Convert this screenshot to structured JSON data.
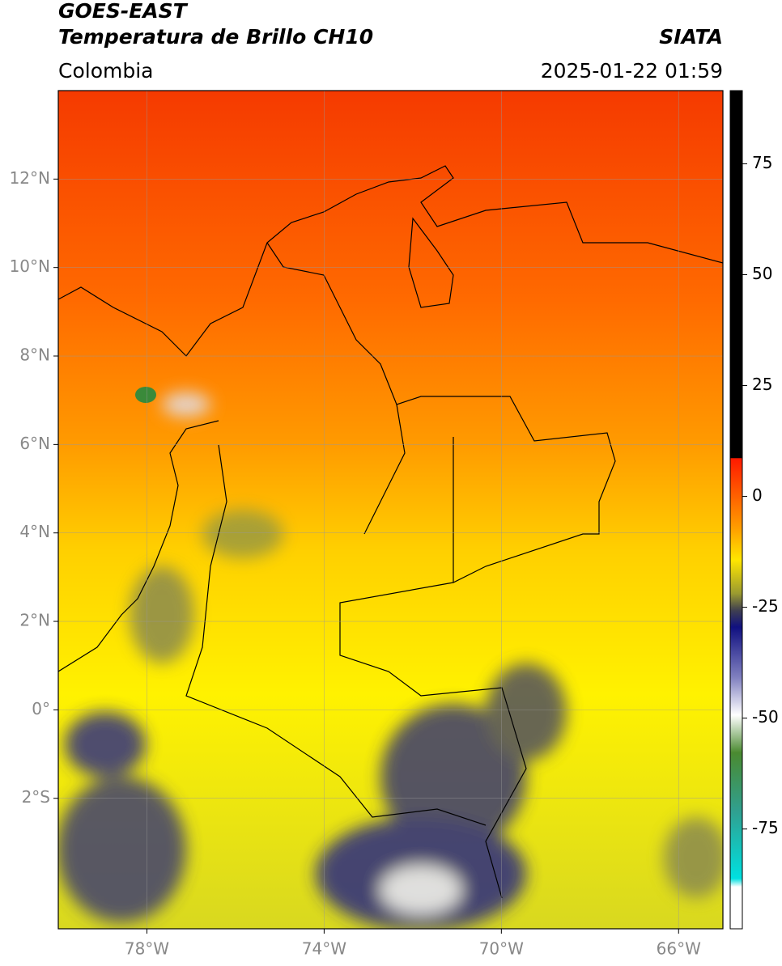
{
  "header": {
    "title": "GOES-EAST",
    "subtitle": "Temperatura de Brillo CH10",
    "region": "Colombia",
    "source": "SIATA",
    "timestamp": "2025-01-22 01:59"
  },
  "map": {
    "xlim": [
      -80,
      -65
    ],
    "ylim": [
      -4.95,
      14
    ],
    "xticks": [
      {
        "value": -78,
        "label": "78°W"
      },
      {
        "value": -74,
        "label": "74°W"
      },
      {
        "value": -70,
        "label": "70°W"
      },
      {
        "value": -66,
        "label": "66°W"
      }
    ],
    "yticks": [
      {
        "value": 12,
        "label": "12°N"
      },
      {
        "value": 10,
        "label": "10°N"
      },
      {
        "value": 8,
        "label": "8°N"
      },
      {
        "value": 6,
        "label": "6°N"
      },
      {
        "value": 4,
        "label": "4°N"
      },
      {
        "value": 2,
        "label": "2°N"
      },
      {
        "value": 0,
        "label": "0°"
      },
      {
        "value": -2,
        "label": "2°S"
      }
    ],
    "grid": true
  },
  "colorbar": {
    "lim": [
      -97.5,
      91.5
    ],
    "ticks": [
      75,
      50,
      25,
      0,
      -25,
      -50,
      -75
    ]
  }
}
